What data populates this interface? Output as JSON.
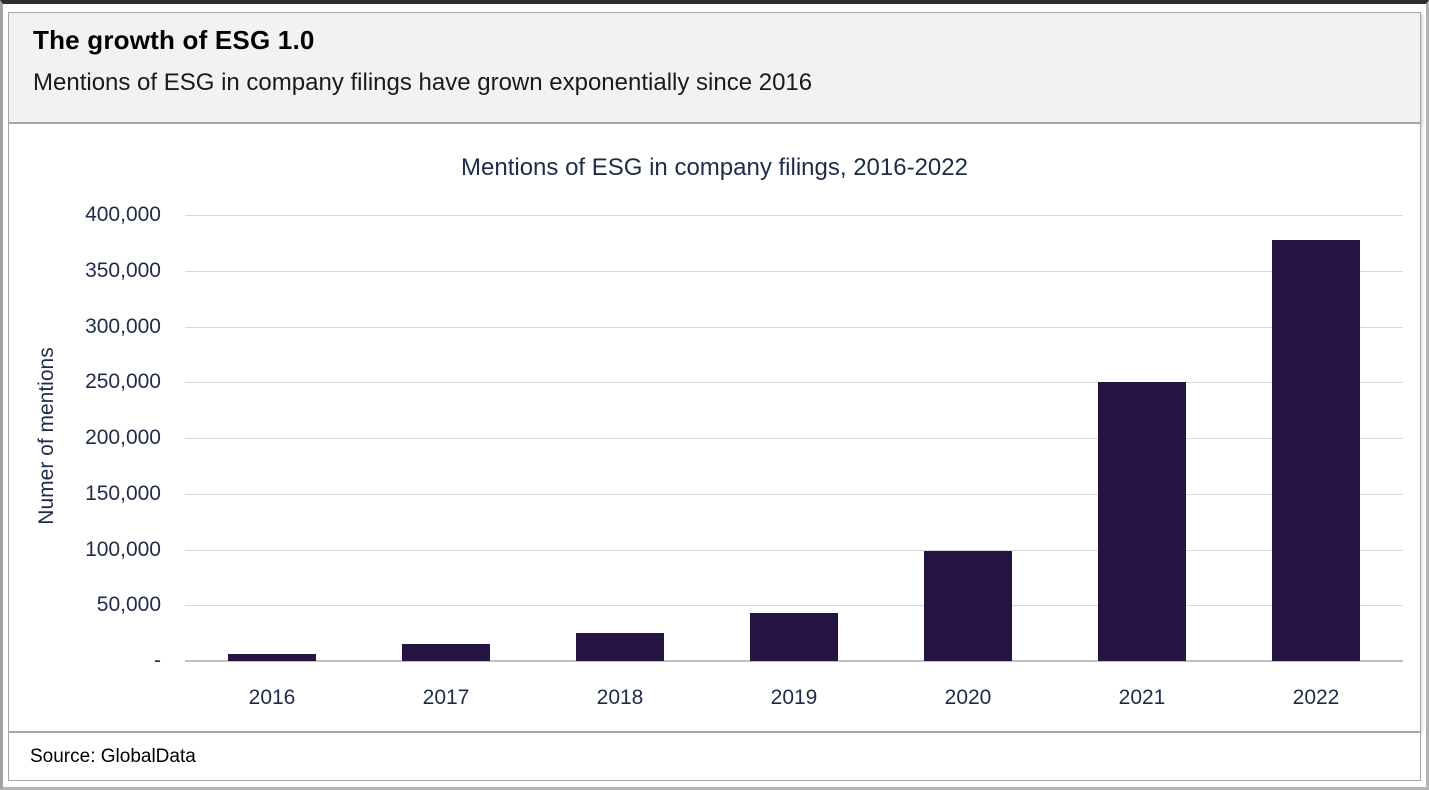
{
  "window": {
    "header": {
      "title": "The growth of ESG 1.0",
      "subtitle": "Mentions of ESG in company filings have grown exponentially since 2016"
    },
    "footer": {
      "source": "Source: GlobalData"
    }
  },
  "chart_data": {
    "type": "bar",
    "title": "Mentions of ESG in company filings, 2016-2022",
    "categories": [
      "2016",
      "2017",
      "2018",
      "2019",
      "2020",
      "2021",
      "2022"
    ],
    "values": [
      6000,
      15000,
      25000,
      43000,
      99000,
      250000,
      378000
    ],
    "xlabel": "",
    "ylabel": "Numer of mentions",
    "ylim": [
      0,
      400000
    ],
    "ytick_step": 50000,
    "ytick_zero_label": "-",
    "grid": true,
    "legend": false,
    "colors": {
      "bar": "#251442",
      "axis_text": "#1f2b4a",
      "gridline": "#d9d9d9",
      "baseline": "#bfbfbf",
      "header_bg": "#f2f2f2",
      "panel_border": "#a6a6a6"
    }
  }
}
